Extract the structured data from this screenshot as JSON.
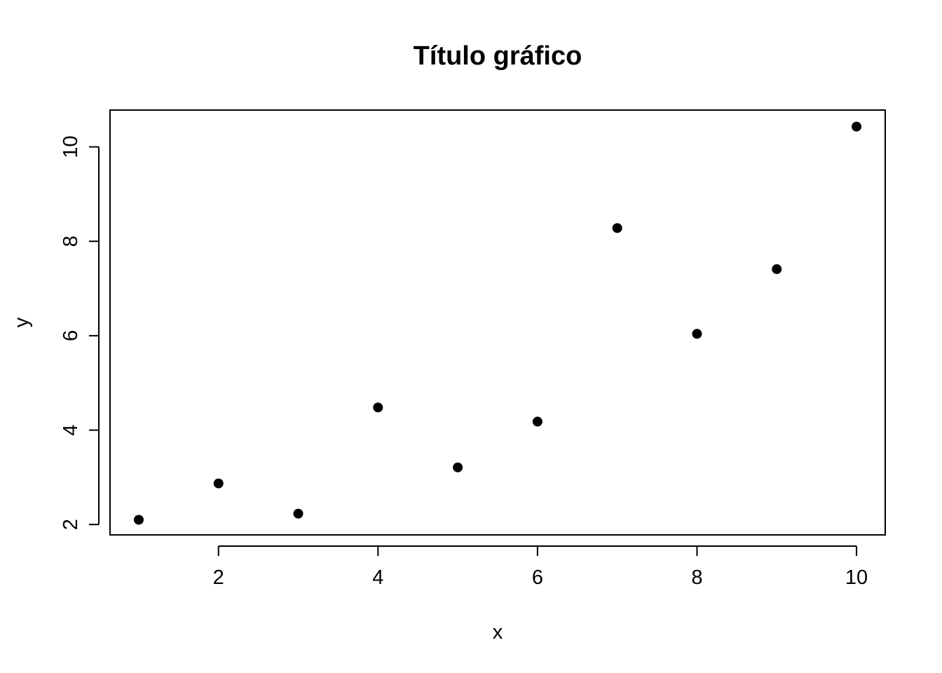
{
  "chart_data": {
    "type": "scatter",
    "title": "Título gráfico",
    "xlabel": "x",
    "ylabel": "y",
    "xlim": [
      0.64,
      10.36
    ],
    "ylim": [
      1.78,
      10.78
    ],
    "xticks": [
      2,
      4,
      6,
      8,
      10
    ],
    "yticks": [
      2,
      4,
      6,
      8,
      10
    ],
    "grid": false,
    "point_color": "#000000",
    "series": [
      {
        "x": [
          1,
          2,
          3,
          4,
          5,
          6,
          7,
          8,
          9,
          10
        ],
        "y": [
          2.1,
          2.87,
          2.23,
          4.48,
          3.21,
          4.18,
          8.28,
          6.04,
          7.41,
          10.43
        ]
      }
    ]
  }
}
